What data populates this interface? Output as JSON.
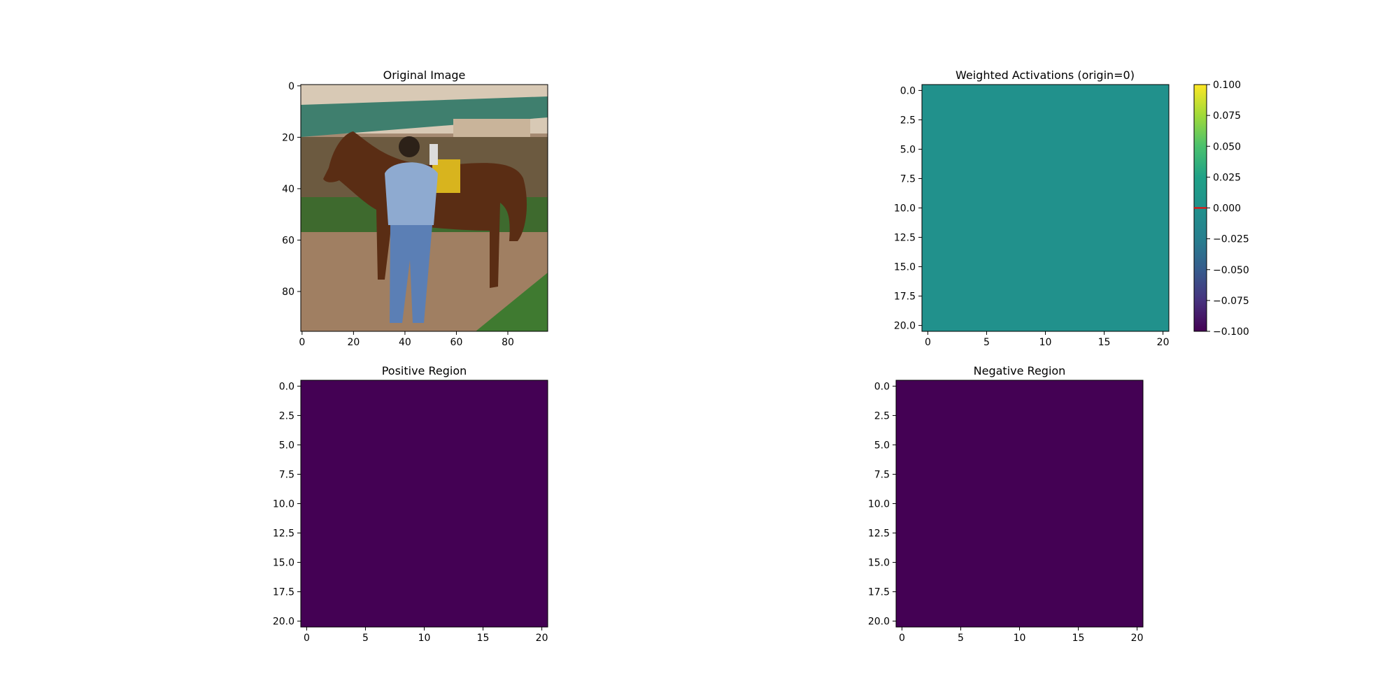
{
  "chart_data": [
    {
      "type": "image",
      "title": "Original Image",
      "content": "photo",
      "xlim": [
        -0.5,
        95.5
      ],
      "ylim": [
        95.5,
        -0.5
      ],
      "xticks": [
        0,
        20,
        40,
        60,
        80
      ],
      "yticks": [
        0,
        20,
        40,
        60,
        80
      ],
      "xtick_labels": [
        "0",
        "20",
        "40",
        "60",
        "80"
      ],
      "ytick_labels": [
        "0",
        "20",
        "40",
        "60",
        "80"
      ]
    },
    {
      "type": "heatmap",
      "title": "Weighted Activations (origin=0)",
      "fill_value": 0.0,
      "fill_color": "#21918c",
      "xlim": [
        -0.5,
        20.5
      ],
      "ylim": [
        20.5,
        -0.5
      ],
      "xticks": [
        0,
        5,
        10,
        15,
        20
      ],
      "yticks": [
        0,
        2.5,
        5,
        7.5,
        10,
        12.5,
        15,
        17.5,
        20
      ],
      "xtick_labels": [
        "0",
        "5",
        "10",
        "15",
        "20"
      ],
      "ytick_labels": [
        "0.0",
        "2.5",
        "5.0",
        "7.5",
        "10.0",
        "12.5",
        "15.0",
        "17.5",
        "20.0"
      ],
      "colorbar": {
        "colormap": "viridis",
        "range": [
          -0.1,
          0.1
        ],
        "ticks": [
          -0.1,
          -0.075,
          -0.05,
          -0.025,
          0,
          0.025,
          0.05,
          0.075,
          0.1
        ],
        "tick_labels": [
          "−0.100",
          "−0.075",
          "−0.050",
          "−0.025",
          "0.000",
          "0.025",
          "0.050",
          "0.075",
          "0.100"
        ],
        "marker_value": 0,
        "marker_color": "#ff0000"
      }
    },
    {
      "type": "heatmap",
      "title": "Positive Region",
      "fill_color": "#440154",
      "xlim": [
        -0.5,
        20.5
      ],
      "ylim": [
        20.5,
        -0.5
      ],
      "xticks": [
        0,
        5,
        10,
        15,
        20
      ],
      "yticks": [
        0,
        2.5,
        5,
        7.5,
        10,
        12.5,
        15,
        17.5,
        20
      ],
      "xtick_labels": [
        "0",
        "5",
        "10",
        "15",
        "20"
      ],
      "ytick_labels": [
        "0.0",
        "2.5",
        "5.0",
        "7.5",
        "10.0",
        "12.5",
        "15.0",
        "17.5",
        "20.0"
      ]
    },
    {
      "type": "heatmap",
      "title": "Negative Region",
      "fill_color": "#440154",
      "xlim": [
        -0.5,
        20.5
      ],
      "ylim": [
        20.5,
        -0.5
      ],
      "xticks": [
        0,
        5,
        10,
        15,
        20
      ],
      "yticks": [
        0,
        2.5,
        5,
        7.5,
        10,
        12.5,
        15,
        17.5,
        20
      ],
      "xtick_labels": [
        "0",
        "5",
        "10",
        "15",
        "20"
      ],
      "ytick_labels": [
        "0.0",
        "2.5",
        "5.0",
        "7.5",
        "10.0",
        "12.5",
        "15.0",
        "17.5",
        "20.0"
      ]
    }
  ]
}
